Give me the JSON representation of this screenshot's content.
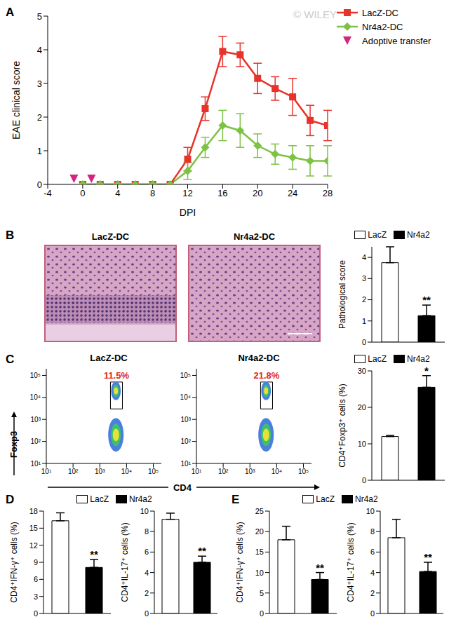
{
  "chart_data": [
    {
      "type": "line",
      "title": "A",
      "x_label": "DPI",
      "y_label": "EAE clinical score",
      "x": [
        0,
        2,
        4,
        6,
        8,
        10,
        12,
        14,
        16,
        18,
        20,
        22,
        24,
        26,
        28
      ],
      "series": [
        {
          "name": "LacZ-DC",
          "color": "#e8332a",
          "marker": "square",
          "values": [
            0,
            0,
            0,
            0,
            0,
            0,
            0.75,
            2.25,
            3.95,
            3.85,
            3.15,
            2.85,
            2.6,
            1.9,
            1.75
          ],
          "errors": [
            0,
            0,
            0,
            0,
            0,
            0,
            0.35,
            0.35,
            0.45,
            0.35,
            0.45,
            0.35,
            0.55,
            0.45,
            0.45
          ]
        },
        {
          "name": "Nr4a2-DC",
          "color": "#7dc242",
          "marker": "diamond",
          "values": [
            0,
            0,
            0,
            0,
            0,
            0,
            0.4,
            1.1,
            1.75,
            1.6,
            1.15,
            0.9,
            0.8,
            0.7,
            0.7
          ],
          "errors": [
            0,
            0,
            0,
            0,
            0,
            0,
            0.25,
            0.3,
            0.45,
            0.5,
            0.35,
            0.3,
            0.35,
            0.45,
            0.45
          ]
        },
        {
          "name": "Adoptive transfer",
          "type": "scatter",
          "color": "#d6247e",
          "marker": "triangle",
          "x": [
            -1,
            1
          ],
          "values": [
            0,
            0
          ]
        }
      ],
      "xlim": [
        -4,
        28
      ],
      "xticks": [
        -4,
        0,
        4,
        8,
        12,
        16,
        20,
        24,
        28
      ],
      "ylim": [
        0,
        5
      ],
      "yticks": [
        0,
        1,
        2,
        3,
        4,
        5
      ],
      "legend": "top-right",
      "annotations": [
        "© WILEY"
      ]
    },
    {
      "type": "image",
      "title": "B",
      "panels": [
        "LacZ-DC",
        "Nr4a2-DC"
      ]
    },
    {
      "type": "bar",
      "y_label": "Pathological score",
      "categories": [
        "LacZ",
        "Nr4a2"
      ],
      "values": [
        3.75,
        1.25
      ],
      "errors": [
        0.75,
        0.5
      ],
      "colors": [
        "#ffffff",
        "#000000"
      ],
      "ylim": [
        0,
        4.5
      ],
      "yticks": [
        0,
        1,
        2,
        3,
        4
      ],
      "legend": "top",
      "tick_labels": "y",
      "annotations": [
        {
          "category": "Nr4a2",
          "text": "**"
        }
      ]
    },
    {
      "type": "scatter",
      "title": "C",
      "subtitle": "LacZ-DC",
      "x_label": "CD4",
      "y_label": "Foxp3",
      "log": true,
      "xlim": [
        10,
        200000
      ],
      "ylim": [
        10,
        200000
      ],
      "xticks": [
        {
          "value": 10,
          "label": "10¹"
        },
        {
          "value": 100,
          "label": "10²"
        },
        {
          "value": 1000,
          "label": "10³"
        },
        {
          "value": 10000,
          "label": "10⁴"
        },
        {
          "value": 100000,
          "label": "10⁵"
        }
      ],
      "yticks": [
        {
          "value": 10,
          "label": "10¹"
        },
        {
          "value": 100,
          "label": "10²"
        },
        {
          "value": 1000,
          "label": "10³"
        },
        {
          "value": 10000,
          "label": "10⁴"
        },
        {
          "value": 100000,
          "label": "10⁵"
        }
      ],
      "clusters": {
        "x": [
          4000,
          4000
        ],
        "values": [
          20000,
          200
        ]
      },
      "gate": {
        "x": [
          2500,
          7000
        ],
        "y": [
          3000,
          50000
        ],
        "label": "11.5%"
      }
    },
    {
      "type": "scatter",
      "subtitle": "Nr4a2-DC",
      "log": true,
      "xlim": [
        10,
        200000
      ],
      "ylim": [
        10,
        200000
      ],
      "xticks": [
        {
          "value": 10,
          "label": "10¹"
        },
        {
          "value": 100,
          "label": "10²"
        },
        {
          "value": 1000,
          "label": "10³"
        },
        {
          "value": 10000,
          "label": "10⁴"
        },
        {
          "value": 100000,
          "label": "10⁵"
        }
      ],
      "yticks": [
        {
          "value": 10,
          "label": "10¹"
        },
        {
          "value": 100,
          "label": "10²"
        },
        {
          "value": 1000,
          "label": "10³"
        },
        {
          "value": 10000,
          "label": "10⁴"
        },
        {
          "value": 100000,
          "label": "10⁵"
        }
      ],
      "clusters": {
        "x": [
          4000,
          4000
        ],
        "values": [
          20000,
          200
        ]
      },
      "gate": {
        "x": [
          2500,
          7000
        ],
        "y": [
          3000,
          50000
        ],
        "label": "21.8%"
      }
    },
    {
      "type": "bar",
      "y_label": "CD4⁺Foxp3⁺ cells (%)",
      "categories": [
        "LacZ",
        "Nr4a2"
      ],
      "values": [
        12,
        25.5
      ],
      "errors": [
        0.3,
        3.2
      ],
      "colors": [
        "#ffffff",
        "#000000"
      ],
      "ylim": [
        0,
        30
      ],
      "yticks": [
        0,
        10,
        20,
        30
      ],
      "legend": "top",
      "tick_labels": "y",
      "annotations": [
        {
          "category": "Nr4a2",
          "text": "*"
        }
      ]
    },
    {
      "type": "bar",
      "title": "D",
      "y_label": "CD4⁺IFN-γ⁺ cells (%)",
      "categories": [
        "LacZ",
        "Nr4a2"
      ],
      "values": [
        16.3,
        8.1
      ],
      "errors": [
        1.4,
        1.4
      ],
      "colors": [
        "#ffffff",
        "#000000"
      ],
      "ylim": [
        0,
        18
      ],
      "yticks": [
        0,
        3,
        6,
        9,
        12,
        15,
        18
      ],
      "legend": "top",
      "tick_labels": "y",
      "annotations": [
        {
          "category": "Nr4a2",
          "text": "**"
        }
      ]
    },
    {
      "type": "bar",
      "y_label": "CD4⁺IL-17⁺ cells (%)",
      "categories": [
        "LacZ",
        "Nr4a2"
      ],
      "values": [
        9.2,
        5.0
      ],
      "errors": [
        0.6,
        0.6
      ],
      "colors": [
        "#ffffff",
        "#000000"
      ],
      "ylim": [
        0,
        10
      ],
      "yticks": [
        0,
        2,
        4,
        6,
        8,
        10
      ],
      "tick_labels": "y",
      "annotations": [
        {
          "category": "Nr4a2",
          "text": "**"
        }
      ]
    },
    {
      "type": "bar",
      "title": "E",
      "y_label": "CD4⁺IFN-γ⁺ cells (%)",
      "categories": [
        "LacZ",
        "Nr4a2"
      ],
      "values": [
        18,
        8.3
      ],
      "errors": [
        3.3,
        1.7
      ],
      "colors": [
        "#ffffff",
        "#000000"
      ],
      "ylim": [
        0,
        25
      ],
      "yticks": [
        0,
        5,
        10,
        15,
        20,
        25
      ],
      "legend": "top",
      "tick_labels": "y",
      "annotations": [
        {
          "category": "Nr4a2",
          "text": "**"
        }
      ]
    },
    {
      "type": "bar",
      "y_label": "CD4⁺IL-17⁺ cells (%)",
      "categories": [
        "LacZ",
        "Nr4a2"
      ],
      "values": [
        7.4,
        4.1
      ],
      "errors": [
        1.8,
        0.9
      ],
      "colors": [
        "#ffffff",
        "#000000"
      ],
      "ylim": [
        0,
        10
      ],
      "yticks": [
        0,
        2,
        4,
        6,
        8,
        10
      ],
      "tick_labels": "y",
      "annotations": [
        {
          "category": "Nr4a2",
          "text": "**"
        }
      ]
    }
  ]
}
